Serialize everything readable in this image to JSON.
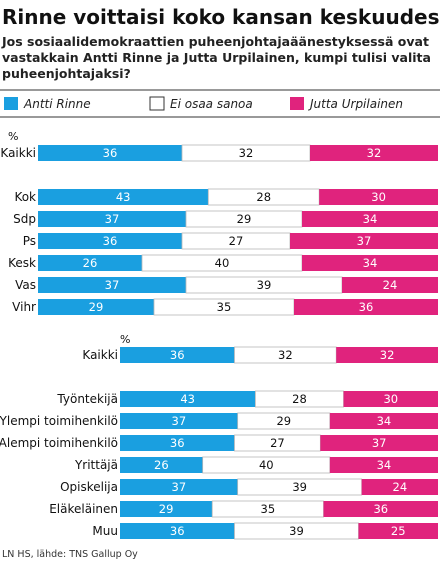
{
  "title": "Rinne voittaisi koko kansan keskuudessa",
  "subtitle_lines": [
    "Jos sosiaalidemokraattien puheenjohtajaäänestyksessä ovat",
    "vastakkain Antti Rinne ja Jutta Urpilainen, kumpi tulisi valita",
    "puheenjohtajaksi?"
  ],
  "legend": [
    {
      "label": "Antti Rinne",
      "color": "#1a9fe0"
    },
    {
      "label": "Ei osaa sanoa",
      "color": "#ffffff"
    },
    {
      "label": "Jutta Urpilainen",
      "color": "#e0237d"
    }
  ],
  "percent_sign": "%",
  "source": "LN HS, lähde: TNS Gallup Oy",
  "chart_data": [
    {
      "type": "bar",
      "stacked": true,
      "orientation": "horizontal",
      "series_names": [
        "Antti Rinne",
        "Ei osaa sanoa",
        "Jutta Urpilainen"
      ],
      "colors": [
        "#1a9fe0",
        "#ffffff",
        "#e0237d"
      ],
      "groups": [
        {
          "categories": [
            "Kaikki"
          ],
          "values": [
            [
              36,
              32,
              32
            ]
          ]
        },
        {
          "categories": [
            "Kok",
            "Sdp",
            "Ps",
            "Kesk",
            "Vas",
            "Vihr"
          ],
          "values": [
            [
              43,
              28,
              30
            ],
            [
              37,
              29,
              34
            ],
            [
              36,
              27,
              37
            ],
            [
              26,
              40,
              34
            ],
            [
              37,
              39,
              24
            ],
            [
              29,
              35,
              36
            ]
          ]
        }
      ]
    },
    {
      "type": "bar",
      "stacked": true,
      "orientation": "horizontal",
      "series_names": [
        "Antti Rinne",
        "Ei osaa sanoa",
        "Jutta Urpilainen"
      ],
      "colors": [
        "#1a9fe0",
        "#ffffff",
        "#e0237d"
      ],
      "groups": [
        {
          "categories": [
            "Kaikki"
          ],
          "values": [
            [
              36,
              32,
              32
            ]
          ]
        },
        {
          "categories": [
            "Työntekijä",
            "Ylempi toimihenkilö",
            "Alempi toimihenkilö",
            "Yrittäjä",
            "Opiskelija",
            "Eläkeläinen",
            "Muu"
          ],
          "values": [
            [
              43,
              28,
              30
            ],
            [
              37,
              29,
              34
            ],
            [
              36,
              27,
              37
            ],
            [
              26,
              40,
              34
            ],
            [
              37,
              39,
              24
            ],
            [
              29,
              35,
              36
            ],
            [
              36,
              39,
              25
            ]
          ]
        }
      ]
    }
  ]
}
